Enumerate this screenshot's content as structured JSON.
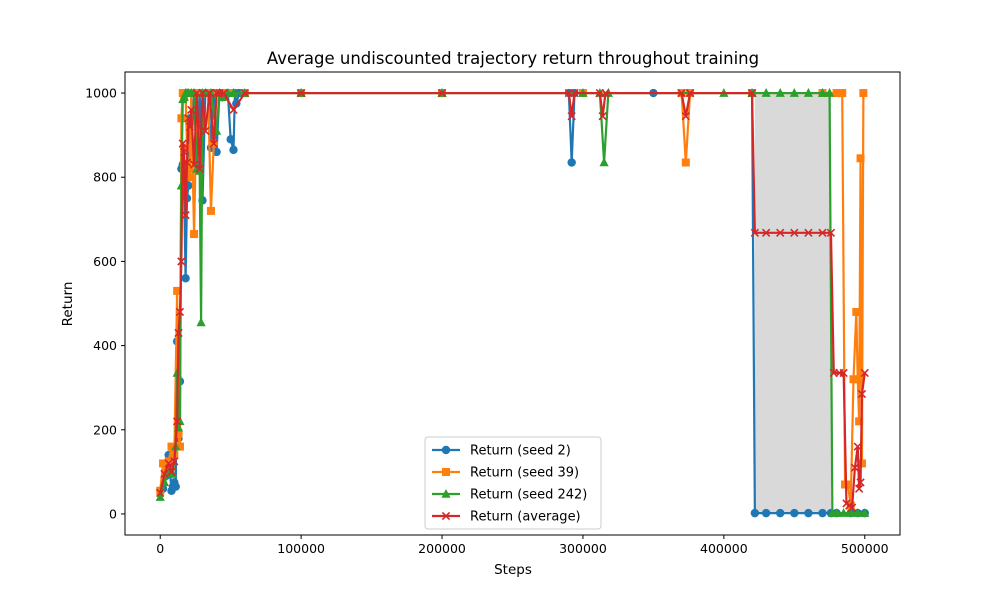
{
  "chart_data": {
    "type": "line",
    "title": "Average undiscounted trajectory return throughout training",
    "xlabel": "Steps",
    "ylabel": "Return",
    "xlim": [
      -25000,
      525000
    ],
    "ylim": [
      -50,
      1050
    ],
    "xticks": [
      0,
      100000,
      200000,
      300000,
      400000,
      500000
    ],
    "yticks": [
      0,
      200,
      400,
      600,
      800,
      1000
    ],
    "legend_position": "lower-center",
    "grid": false,
    "shaded_band": {
      "between": [
        "Return (seed 2)",
        "Return (seed 242)"
      ],
      "x_range": [
        422000,
        476000
      ],
      "lower": 2,
      "upper": 1000,
      "color": "#d9d9d9"
    },
    "series": [
      {
        "name": "Return (seed 2)",
        "color": "#1f77b4",
        "marker": "circle",
        "x": [
          2000,
          4000,
          6000,
          8000,
          9000,
          10000,
          11000,
          12000,
          13000,
          14000,
          15000,
          16000,
          17000,
          18000,
          19000,
          20000,
          21000,
          22000,
          24000,
          26000,
          28000,
          30000,
          32000,
          34000,
          36000,
          38000,
          40000,
          42000,
          44000,
          46000,
          48000,
          50000,
          52000,
          53000,
          54000,
          56000,
          60000,
          100000,
          200000,
          290000,
          292000,
          294000,
          350000,
          420000,
          422000,
          430000,
          440000,
          450000,
          460000,
          470000,
          476000,
          480000,
          490000,
          495000,
          500000
        ],
        "y": [
          60,
          90,
          140,
          55,
          65,
          75,
          65,
          410,
          180,
          315,
          820,
          830,
          760,
          560,
          750,
          780,
          940,
          860,
          1000,
          830,
          1000,
          745,
          1000,
          1000,
          870,
          1000,
          860,
          1000,
          990,
          1000,
          1000,
          890,
          865,
          1000,
          975,
          1000,
          1000,
          1000,
          1000,
          1000,
          835,
          1000,
          1000,
          1000,
          2,
          2,
          2,
          2,
          2,
          2,
          2,
          2,
          2,
          2,
          2
        ]
      },
      {
        "name": "Return (seed 39)",
        "color": "#ff7f0e",
        "marker": "square",
        "x": [
          0,
          2000,
          4000,
          6000,
          8000,
          10000,
          12000,
          13000,
          14000,
          15000,
          16000,
          17000,
          18000,
          19000,
          20000,
          21000,
          22000,
          24000,
          26000,
          28000,
          30000,
          32000,
          34000,
          36000,
          38000,
          40000,
          42000,
          45000,
          50000,
          60000,
          100000,
          200000,
          300000,
          370000,
          373000,
          376000,
          420000,
          470000,
          480000,
          484000,
          486000,
          488000,
          490000,
          492000,
          494000,
          495000,
          496000,
          497000,
          498000,
          499000
        ],
        "y": [
          55,
          120,
          100,
          125,
          160,
          140,
          530,
          190,
          160,
          940,
          1000,
          990,
          1000,
          870,
          820,
          800,
          1000,
          665,
          1000,
          1000,
          1000,
          1000,
          1000,
          720,
          880,
          1000,
          1000,
          1000,
          1000,
          1000,
          1000,
          1000,
          1000,
          1000,
          835,
          1000,
          1000,
          1000,
          1000,
          1000,
          70,
          70,
          20,
          320,
          480,
          320,
          220,
          845,
          120,
          1000
        ]
      },
      {
        "name": "Return (seed 242)",
        "color": "#2ca02c",
        "marker": "triangle",
        "x": [
          0,
          3000,
          6000,
          9000,
          11000,
          12000,
          13000,
          14000,
          15000,
          16000,
          17000,
          18000,
          19000,
          20000,
          22000,
          24000,
          26000,
          28000,
          29000,
          30000,
          32000,
          36000,
          40000,
          42000,
          44000,
          48000,
          52000,
          60000,
          100000,
          200000,
          300000,
          312000,
          315000,
          318000,
          400000,
          420000,
          430000,
          440000,
          450000,
          460000,
          470000,
          475000,
          477000,
          480000,
          485000,
          490000,
          495000,
          500000
        ],
        "y": [
          40,
          75,
          95,
          95,
          160,
          335,
          205,
          220,
          780,
          985,
          990,
          1000,
          1000,
          1000,
          1000,
          1000,
          820,
          815,
          455,
          1000,
          1000,
          1000,
          910,
          1000,
          990,
          1000,
          1000,
          1000,
          1000,
          1000,
          1000,
          1000,
          835,
          1000,
          1000,
          1000,
          1000,
          1000,
          1000,
          1000,
          1000,
          1000,
          2,
          2,
          2,
          2,
          2,
          2
        ]
      },
      {
        "name": "Return (average)",
        "color": "#d62728",
        "marker": "x",
        "x": [
          0,
          3000,
          6000,
          8000,
          10000,
          12000,
          13000,
          14000,
          15000,
          16000,
          17000,
          18000,
          19000,
          20000,
          21000,
          22000,
          24000,
          26000,
          28000,
          30000,
          32000,
          35000,
          38000,
          40000,
          42000,
          45000,
          52000,
          60000,
          100000,
          200000,
          290000,
          292000,
          294000,
          312000,
          314000,
          316000,
          370000,
          373000,
          376000,
          420000,
          422000,
          430000,
          440000,
          450000,
          460000,
          470000,
          476000,
          478000,
          482000,
          485000,
          487000,
          489000,
          491000,
          493000,
          495000,
          496000,
          497000,
          498000,
          500000
        ],
        "y": [
          50,
          95,
          120,
          100,
          125,
          220,
          430,
          480,
          600,
          880,
          860,
          710,
          835,
          940,
          920,
          960,
          830,
          1000,
          820,
          1000,
          910,
          1000,
          880,
          1000,
          1000,
          1000,
          960,
          1000,
          1000,
          1000,
          1000,
          945,
          1000,
          1000,
          945,
          1000,
          1000,
          945,
          1000,
          1000,
          668,
          668,
          668,
          668,
          668,
          668,
          668,
          335,
          335,
          335,
          25,
          20,
          15,
          110,
          160,
          60,
          75,
          285,
          335
        ]
      }
    ]
  }
}
